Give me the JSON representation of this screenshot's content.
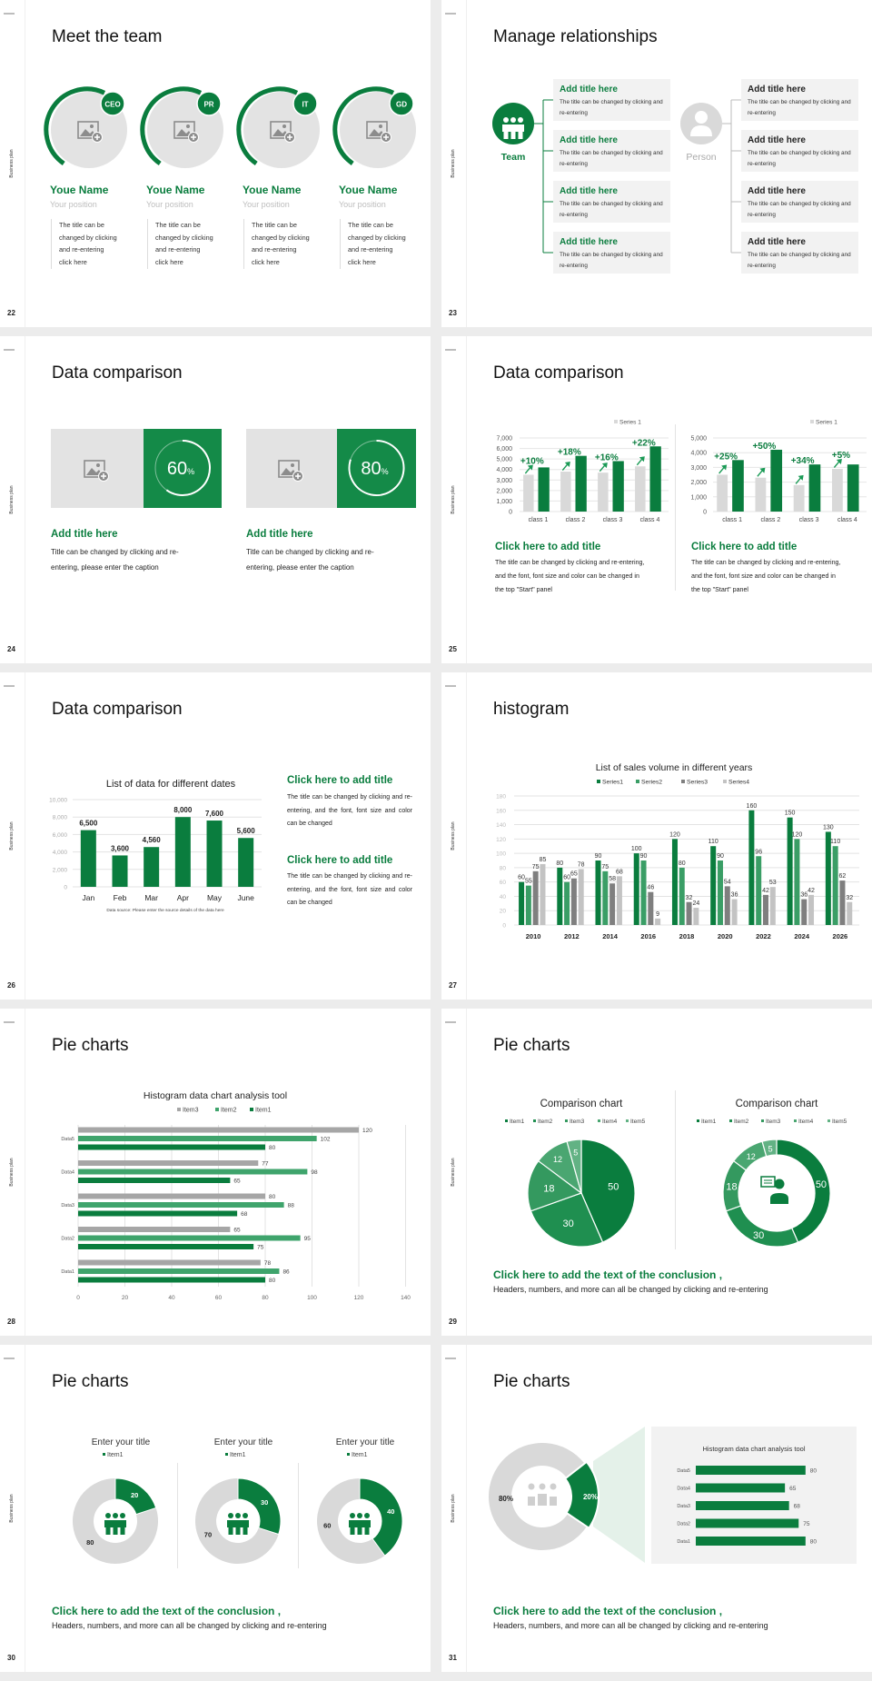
{
  "common": {
    "side_label": "Business plan"
  },
  "colors": {
    "brand_green": "#0a7d3e",
    "light_gray": "#e3e3e3",
    "panel_gray": "#f2f2f2"
  },
  "s22": {
    "page": "22",
    "title": "Meet the team",
    "members": [
      {
        "badge": "CEO",
        "name": "Youe Name",
        "position": "Your position",
        "desc": "The title can be\nchanged by clicking\nand re-entering\nclick here"
      },
      {
        "badge": "PR",
        "name": "Youe Name",
        "position": "Your position",
        "desc": "The title can be\nchanged by clicking\nand re-entering\nclick here"
      },
      {
        "badge": "IT",
        "name": "Youe Name",
        "position": "Your position",
        "desc": "The title can be\nchanged by clicking\nand re-entering\nclick here"
      },
      {
        "badge": "GD",
        "name": "Youe Name",
        "position": "Your position",
        "desc": "The title can be\nchanged by clicking\nand re-entering\nclick here"
      }
    ]
  },
  "s23": {
    "page": "23",
    "title": "Manage relationships",
    "team_label": "Team",
    "person_label": "Person",
    "team_items": [
      {
        "title": "Add title here",
        "desc": "The title can be changed by clicking and re-entering"
      },
      {
        "title": "Add title here",
        "desc": "The title can be changed by clicking and re-entering"
      },
      {
        "title": "Add title here",
        "desc": "The title can be changed by clicking and re-entering"
      },
      {
        "title": "Add title here",
        "desc": "The title can be changed by clicking and re-entering"
      }
    ],
    "person_items": [
      {
        "title": "Add title here",
        "desc": "The title can be changed by clicking and re-entering"
      },
      {
        "title": "Add title here",
        "desc": "The title can be changed by clicking and re-entering"
      },
      {
        "title": "Add title here",
        "desc": "The title can be changed by clicking and re-entering"
      },
      {
        "title": "Add title here",
        "desc": "The title can be changed by clicking and re-entering"
      }
    ]
  },
  "s24": {
    "page": "24",
    "title": "Data comparison",
    "cards": [
      {
        "percent": 60,
        "percent_label": "60",
        "unit": "%",
        "title": "Add title here",
        "desc": "Title can be changed by clicking and re-entering, please enter the caption"
      },
      {
        "percent": 80,
        "percent_label": "80",
        "unit": "%",
        "title": "Add title here",
        "desc": "Title can be changed by clicking and re-entering, please enter the caption"
      }
    ]
  },
  "s25": {
    "page": "25",
    "title": "Data comparison",
    "blocks": [
      {
        "title": "Click here to add title",
        "desc": "The title can be changed by clicking and re-entering, and the font, font size and color can be changed in the top \"Start\" panel"
      },
      {
        "title": "Click here to add title",
        "desc": "The title can be changed by clicking and re-entering, and the font, font size and color can be changed in the top \"Start\" panel"
      }
    ]
  },
  "s26": {
    "page": "26",
    "title": "Data comparison",
    "blocks": [
      {
        "title": "Click here to add title",
        "desc": "The title can be changed by clicking and re-entering, and the font, font size and color can be changed"
      },
      {
        "title": "Click here to add title",
        "desc": "The title can be changed by clicking and re-entering, and the font, font size and color can be changed"
      }
    ]
  },
  "s27": {
    "page": "27",
    "title": "histogram"
  },
  "s28": {
    "page": "28",
    "title": "Pie charts"
  },
  "s29": {
    "page": "29",
    "title": "Pie charts",
    "conclusion": "Click here to add the text of the conclusion ,",
    "conclusion_desc": "Headers, numbers, and more can all be changed by clicking and re-entering"
  },
  "s30": {
    "page": "30",
    "title": "Pie charts",
    "conclusion": "Click here to add the text of the conclusion ,",
    "conclusion_desc": "Headers, numbers, and more can all be changed by clicking and re-entering"
  },
  "s31": {
    "page": "31",
    "title": "Pie charts",
    "conclusion": "Click here to add the text of the conclusion ,",
    "conclusion_desc": "Headers, numbers, and more can all be changed by clicking and re-entering"
  },
  "chart_data": [
    {
      "type": "bar",
      "legend": [
        "Series 1"
      ],
      "categories": [
        "class 1",
        "class 2",
        "class 3",
        "class 4"
      ],
      "series": [
        {
          "name": "Series 1",
          "values": [
            3500,
            3800,
            3700,
            4300
          ]
        },
        {
          "values": [
            4200,
            5300,
            4800,
            6200
          ]
        }
      ],
      "annotations": [
        "+10%",
        "+18%",
        "+16%",
        "+22%"
      ],
      "ylim": [
        0,
        7000
      ],
      "yticks": [
        "0",
        "1,000",
        "2,000",
        "3,000",
        "4,000",
        "5,000",
        "6,000",
        "7,000"
      ],
      "grid": true
    },
    {
      "type": "bar",
      "legend": [
        "Series 1"
      ],
      "categories": [
        "class 1",
        "class 2",
        "class 3",
        "class 4"
      ],
      "series": [
        {
          "name": "Series 1",
          "values": [
            2500,
            2300,
            1800,
            2900
          ]
        },
        {
          "values": [
            3500,
            4200,
            3200,
            3200
          ]
        }
      ],
      "annotations": [
        "+25%",
        "+50%",
        "+34%",
        "+5%"
      ],
      "ylim": [
        0,
        5000
      ],
      "yticks": [
        "0",
        "1,000",
        "2,000",
        "3,000",
        "4,000",
        "5,000"
      ],
      "grid": true
    },
    {
      "type": "bar",
      "title": "List of data for different dates",
      "categories": [
        "Jan",
        "Feb",
        "Mar",
        "Apr",
        "May",
        "June"
      ],
      "values": [
        6500,
        3600,
        4560,
        8000,
        7600,
        5600
      ],
      "data_labels": [
        "6,500",
        "3,600",
        "4,560",
        "8,000",
        "7,600",
        "5,600"
      ],
      "ylim": [
        0,
        10000
      ],
      "yticks": [
        "0",
        "2,000",
        "4,000",
        "6,000",
        "8,000",
        "10,000"
      ],
      "source": "Data source: Please enter the source details of the data here",
      "grid": true
    },
    {
      "type": "bar",
      "title": "List of sales volume in different years",
      "categories": [
        "2010",
        "2012",
        "2014",
        "2016",
        "2018",
        "2020",
        "2022",
        "2024",
        "2026"
      ],
      "series": [
        {
          "name": "Series1",
          "color": "#0a7d3e",
          "values": [
            60,
            80,
            90,
            100,
            120,
            110,
            160,
            150,
            130
          ]
        },
        {
          "name": "Series2",
          "color": "#3a9e66",
          "values": [
            55,
            60,
            75,
            90,
            80,
            90,
            96,
            120,
            110
          ]
        },
        {
          "name": "Series3",
          "color": "#7f7f7f",
          "values": [
            75,
            65,
            58,
            46,
            32,
            54,
            42,
            36,
            62
          ]
        },
        {
          "name": "Series4",
          "color": "#c3c3c3",
          "values": [
            85,
            78,
            68,
            9,
            24,
            36,
            53,
            42,
            32
          ]
        }
      ],
      "ylim": [
        0,
        180
      ],
      "yticks": [
        "0",
        "20",
        "40",
        "60",
        "80",
        "100",
        "120",
        "140",
        "160",
        "180"
      ],
      "legend_position": "top",
      "grid": true
    },
    {
      "type": "bar-horizontal",
      "title": "Histogram data chart analysis tool",
      "categories": [
        "Data1",
        "Data2",
        "Data3",
        "Data4",
        "Data5"
      ],
      "series": [
        {
          "name": "Item3",
          "color": "#a6a6a6",
          "values": [
            78,
            65,
            80,
            77,
            120
          ]
        },
        {
          "name": "Item2",
          "color": "#3fa46c",
          "values": [
            86,
            95,
            88,
            98,
            102
          ]
        },
        {
          "name": "Item1",
          "color": "#0a7d3e",
          "values": [
            80,
            75,
            68,
            65,
            80
          ]
        }
      ],
      "xlim": [
        0,
        140
      ],
      "xticks": [
        "0",
        "20",
        "40",
        "60",
        "80",
        "100",
        "120",
        "140"
      ],
      "legend_position": "top",
      "grid": true
    },
    {
      "type": "pie",
      "title": "Comparison chart",
      "legend": [
        "Item1",
        "Item2",
        "Item3",
        "Item4",
        "Item5"
      ],
      "values": [
        50,
        30,
        18,
        12,
        5
      ],
      "labels": [
        "50",
        "30",
        "18",
        "12",
        "5"
      ],
      "colors": [
        "#0a7d3e",
        "#1f8f50",
        "#34995f",
        "#4aa671",
        "#62b284"
      ]
    },
    {
      "type": "donut",
      "title": "Comparison chart",
      "legend": [
        "Item1",
        "Item2",
        "Item3",
        "Item4",
        "Item5"
      ],
      "values": [
        50,
        30,
        18,
        12,
        5
      ],
      "labels": [
        "50",
        "30",
        "18",
        "12",
        "5"
      ],
      "colors": [
        "#0a7d3e",
        "#1f8f50",
        "#34995f",
        "#4aa671",
        "#62b284"
      ]
    },
    {
      "type": "donut",
      "title": "Enter your title",
      "legend": [
        "Item1"
      ],
      "values": [
        20,
        80
      ],
      "labels": [
        "20",
        "80"
      ]
    },
    {
      "type": "donut",
      "title": "Enter your title",
      "legend": [
        "Item1"
      ],
      "values": [
        30,
        70
      ],
      "labels": [
        "30",
        "70"
      ]
    },
    {
      "type": "donut",
      "title": "Enter your title",
      "legend": [
        "Item1"
      ],
      "values": [
        40,
        60
      ],
      "labels": [
        "40",
        "60"
      ]
    },
    {
      "type": "donut",
      "values": [
        20,
        80
      ],
      "labels": [
        "20%",
        "80%"
      ]
    },
    {
      "type": "bar-horizontal",
      "title": "Histogram data chart analysis tool",
      "categories": [
        "Data1",
        "Data2",
        "Data3",
        "Data4",
        "Data5"
      ],
      "values": [
        80,
        75,
        68,
        65,
        80
      ],
      "data_labels": [
        "80",
        "75",
        "68",
        "65",
        "80"
      ],
      "xlim": [
        0,
        80
      ]
    }
  ]
}
